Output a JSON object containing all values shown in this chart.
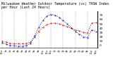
{
  "title": "Milwaukee Weather Outdoor Temperature (vs) THSW Index per Hour (Last 24 Hours)",
  "title_fontsize": 3.5,
  "background_color": "#ffffff",
  "plot_bg_color": "#ffffff",
  "grid_color": "#999999",
  "temp_color": "#cc0000",
  "thsw_color": "#0000cc",
  "hours": [
    0,
    1,
    2,
    3,
    4,
    5,
    6,
    7,
    8,
    9,
    10,
    11,
    12,
    13,
    14,
    15,
    16,
    17,
    18,
    19,
    20,
    21,
    22,
    23
  ],
  "temp": [
    10,
    8,
    5,
    4,
    4,
    4,
    5,
    8,
    20,
    33,
    42,
    48,
    51,
    52,
    50,
    47,
    44,
    40,
    36,
    34,
    30,
    29,
    52,
    53
  ],
  "thsw": [
    6,
    3,
    0,
    -1,
    -2,
    -2,
    0,
    5,
    22,
    42,
    58,
    68,
    72,
    70,
    65,
    58,
    50,
    41,
    32,
    26,
    20,
    18,
    36,
    33
  ],
  "ylim": [
    -5,
    80
  ],
  "yticks": [
    0,
    10,
    20,
    30,
    40,
    50,
    60,
    70
  ],
  "ylabel_fontsize": 3.0,
  "xtick_fontsize": 2.5,
  "line_width": 0.7,
  "marker_size": 0.8,
  "grid_hours": [
    0,
    3,
    6,
    9,
    12,
    15,
    18,
    21
  ]
}
